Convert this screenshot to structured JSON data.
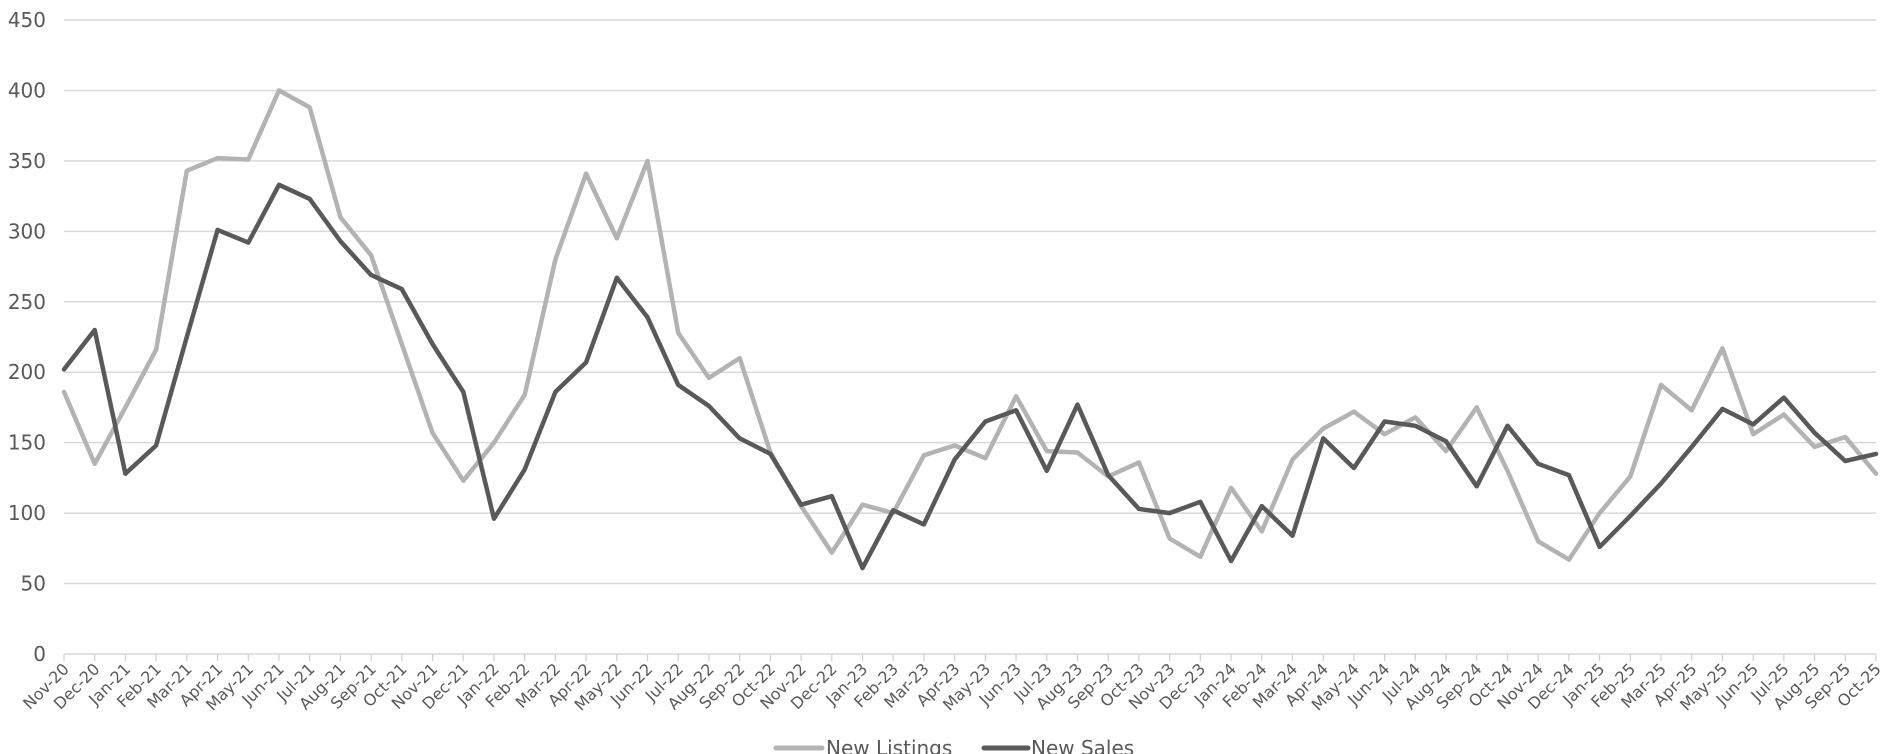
{
  "chart_data": {
    "type": "line",
    "title": "",
    "xlabel": "",
    "ylabel": "",
    "ylim": [
      0,
      450
    ],
    "yticks": [
      0,
      50,
      100,
      150,
      200,
      250,
      300,
      350,
      400,
      450
    ],
    "grid": "horizontal",
    "legend_position": "bottom",
    "categories": [
      "Nov-20",
      "Dec-20",
      "Jan-21",
      "Feb-21",
      "Mar-21",
      "Apr-21",
      "May-21",
      "Jun-21",
      "Jul-21",
      "Aug-21",
      "Sep-21",
      "Oct-21",
      "Nov-21",
      "Dec-21",
      "Jan-22",
      "Feb-22",
      "Mar-22",
      "Apr-22",
      "May-22",
      "Jun-22",
      "Jul-22",
      "Aug-22",
      "Sep-22",
      "Oct-22",
      "Nov-22",
      "Dec-22",
      "Jan-23",
      "Feb-23",
      "Mar-23",
      "Apr-23",
      "May-23",
      "Jun-23",
      "Jul-23",
      "Aug-23",
      "Sep-23",
      "Oct-23",
      "Nov-23",
      "Dec-23",
      "Jan-24",
      "Feb-24",
      "Mar-24",
      "Apr-24",
      "May-24",
      "Jun-24",
      "Jul-24",
      "Aug-24",
      "Sep-24",
      "Oct-24",
      "Nov-24",
      "Dec-24",
      "Jan-25",
      "Feb-25",
      "Mar-25",
      "Apr-25",
      "May-25",
      "Jun-25",
      "Jul-25",
      "Aug-25",
      "Sep-25",
      "Oct-25"
    ],
    "series": [
      {
        "name": "New Listings",
        "color": "#b3b3b3",
        "values": [
          186,
          135,
          175,
          216,
          343,
          352,
          351,
          400,
          388,
          310,
          283,
          220,
          157,
          123,
          150,
          184,
          280,
          341,
          295,
          350,
          228,
          196,
          210,
          143,
          105,
          72,
          106,
          100,
          141,
          148,
          139,
          183,
          144,
          143,
          126,
          136,
          82,
          69,
          118,
          87,
          138,
          160,
          172,
          156,
          168,
          144,
          175,
          130,
          80,
          67,
          100,
          126,
          191,
          173,
          217,
          156,
          170,
          147,
          154,
          128
        ],
        "line_width": 4.5
      },
      {
        "name": "New Sales",
        "color": "#595959",
        "values": [
          202,
          230,
          128,
          148,
          225,
          301,
          292,
          333,
          323,
          293,
          269,
          259,
          220,
          186,
          96,
          131,
          186,
          207,
          267,
          239,
          191,
          176,
          153,
          142,
          106,
          112,
          61,
          102,
          92,
          138,
          165,
          173,
          130,
          177,
          127,
          103,
          100,
          108,
          66,
          105,
          84,
          153,
          132,
          165,
          162,
          151,
          119,
          162,
          135,
          127,
          76,
          98,
          121,
          147,
          174,
          163,
          182,
          157,
          137,
          142
        ],
        "line_width": 4.5
      }
    ]
  }
}
